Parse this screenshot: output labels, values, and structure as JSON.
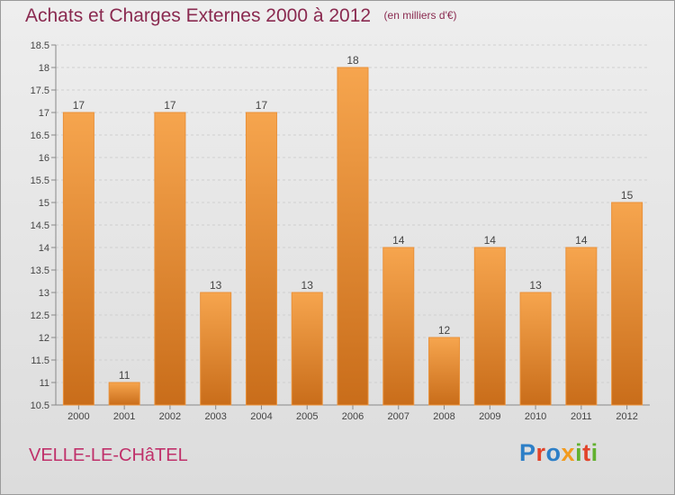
{
  "header": {
    "title": "Achats et Charges Externes 2000 à 2012",
    "unit": "(en milliers d'€)"
  },
  "footer": {
    "commune": "VELLE-LE-CHâTEL",
    "logo_text": "Proxiti"
  },
  "colors": {
    "bar_light": "#f6a54e",
    "bar_dark": "#c96d1a",
    "title": "#8a2a50",
    "commune": "#c0306a"
  },
  "chart_data": {
    "type": "bar",
    "title": "Achats et Charges Externes 2000 à 2012",
    "subtitle": "(en milliers d'€)",
    "xlabel": "",
    "ylabel": "",
    "categories": [
      "2000",
      "2001",
      "2002",
      "2003",
      "2004",
      "2005",
      "2006",
      "2007",
      "2008",
      "2009",
      "2010",
      "2011",
      "2012"
    ],
    "values": [
      17,
      11,
      17,
      13,
      17,
      13,
      18,
      14,
      12,
      14,
      13,
      14,
      15
    ],
    "data_labels": [
      "17",
      "11",
      "17",
      "13",
      "17",
      "13",
      "18",
      "14",
      "12",
      "14",
      "13",
      "14",
      "15"
    ],
    "ylim": [
      10.5,
      18.5
    ],
    "yticks": [
      10.5,
      11,
      11.5,
      12,
      12.5,
      13,
      13.5,
      14,
      14.5,
      15,
      15.5,
      16,
      16.5,
      17,
      17.5,
      18,
      18.5
    ],
    "ytick_labels": [
      "10.5",
      "11",
      "11.5",
      "12",
      "12.5",
      "13",
      "13.5",
      "14",
      "14.5",
      "15",
      "15.5",
      "16",
      "16.5",
      "17",
      "17.5",
      "18",
      "18.5"
    ],
    "grid": true,
    "legend": "none"
  }
}
